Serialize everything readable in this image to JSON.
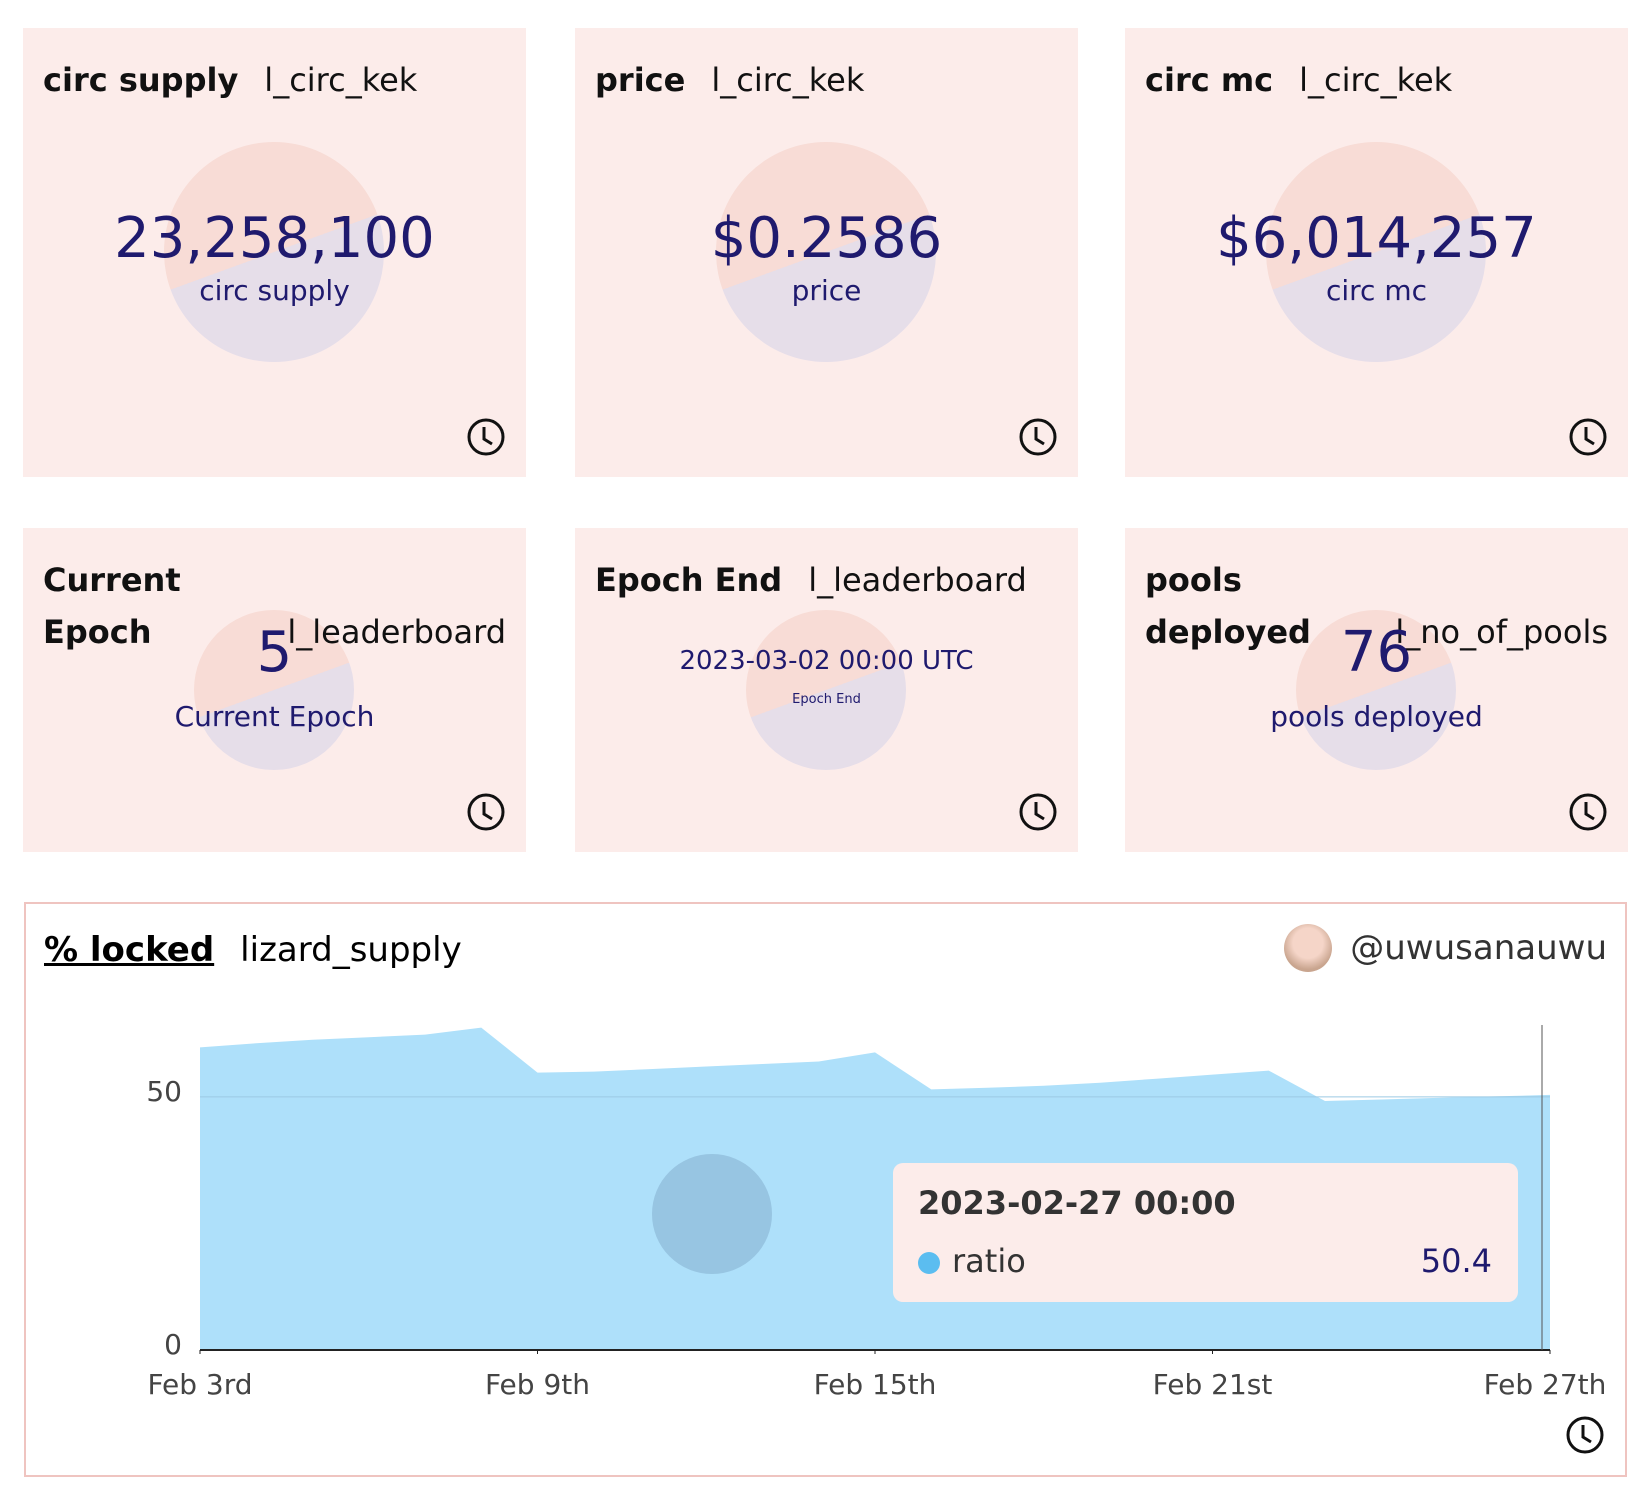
{
  "cards": [
    {
      "title": "circ supply",
      "query": "l_circ_kek",
      "value": "23,258,100",
      "label": "circ supply"
    },
    {
      "title": "price",
      "query": "l_circ_kek",
      "value": "$0.2586",
      "label": "price"
    },
    {
      "title": "circ mc",
      "query": "l_circ_kek",
      "value": "$6,014,257",
      "label": "circ mc"
    },
    {
      "title": "Current Epoch",
      "query": "l_leaderboard",
      "value": "5",
      "label": "Current Epoch"
    },
    {
      "title": "Epoch End",
      "query": "l_leaderboard",
      "value": "2023-03-02 00:00 UTC",
      "label": "Epoch End"
    },
    {
      "title": "pools deployed",
      "query": "l_no_of_pools",
      "value": "76",
      "label": "pools deployed"
    }
  ],
  "panel": {
    "title": "% locked",
    "query": "lizard_supply",
    "user": "@uwusanauwu",
    "chart_data": {
      "type": "area",
      "x": [
        "2023-02-03 00:00",
        "2023-02-04 00:00",
        "2023-02-05 00:00",
        "2023-02-06 00:00",
        "2023-02-07 00:00",
        "2023-02-08 00:00",
        "2023-02-09 00:00",
        "2023-02-10 00:00",
        "2023-02-11 00:00",
        "2023-02-12 00:00",
        "2023-02-13 00:00",
        "2023-02-14 00:00",
        "2023-02-15 00:00",
        "2023-02-16 00:00",
        "2023-02-17 00:00",
        "2023-02-18 00:00",
        "2023-02-19 00:00",
        "2023-02-20 00:00",
        "2023-02-21 00:00",
        "2023-02-22 00:00",
        "2023-02-23 00:00",
        "2023-02-24 00:00",
        "2023-02-25 00:00",
        "2023-02-26 00:00",
        "2023-02-27 00:00"
      ],
      "series": [
        {
          "name": "ratio",
          "color": "#aee0fa",
          "values": [
            59.8,
            60.6,
            61.3,
            61.8,
            62.3,
            63.7,
            54.8,
            55.0,
            55.5,
            56.0,
            56.5,
            57.0,
            58.8,
            51.5,
            51.8,
            52.2,
            52.8,
            53.6,
            54.4,
            55.2,
            49.2,
            49.5,
            49.8,
            50.1,
            50.4
          ]
        }
      ],
      "xticks": [
        {
          "value": "2023-02-03 00:00",
          "label": "Feb 3rd"
        },
        {
          "value": "2023-02-09 00:00",
          "label": "Feb 9th"
        },
        {
          "value": "2023-02-15 00:00",
          "label": "Feb 15th"
        },
        {
          "value": "2023-02-21 00:00",
          "label": "Feb 21st"
        },
        {
          "value": "2023-02-27 00:00",
          "label": "Feb 27th"
        }
      ],
      "ylim": [
        0,
        65
      ],
      "yticks": [
        0,
        50
      ],
      "grid": true,
      "tooltip_index": 24
    }
  }
}
